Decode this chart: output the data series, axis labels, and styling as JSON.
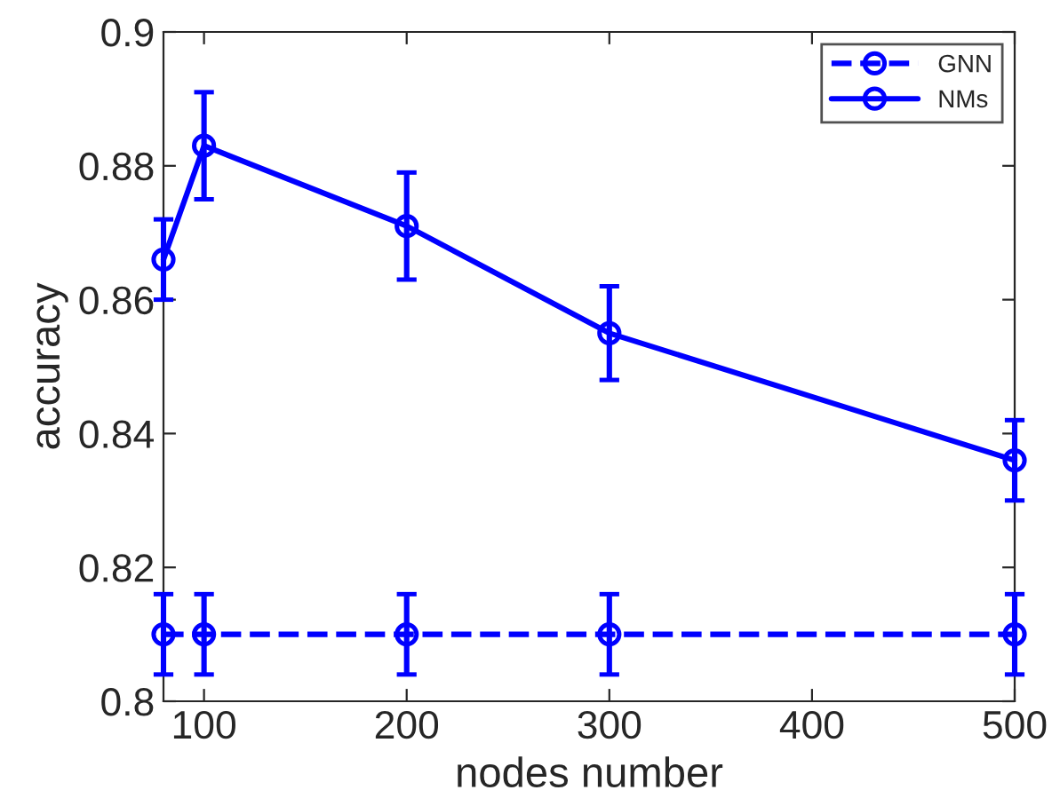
{
  "chart_data": {
    "type": "line",
    "xlabel": "nodes number",
    "ylabel": "accuracy",
    "x": [
      80,
      100,
      200,
      300,
      500
    ],
    "series": [
      {
        "name": "GNN",
        "color": "#0000ff",
        "line_style": "dashed",
        "values": [
          0.81,
          0.81,
          0.81,
          0.81,
          0.81
        ],
        "errors": [
          0.006,
          0.006,
          0.006,
          0.006,
          0.006
        ]
      },
      {
        "name": "NMs",
        "color": "#0000ff",
        "line_style": "solid",
        "values": [
          0.866,
          0.883,
          0.871,
          0.855,
          0.836
        ],
        "errors": [
          0.006,
          0.008,
          0.008,
          0.007,
          0.006
        ]
      }
    ],
    "xlim": [
      80,
      500
    ],
    "xticks": [
      100,
      200,
      300,
      400,
      500
    ],
    "ylim": [
      0.8,
      0.9
    ],
    "yticks": [
      0.8,
      0.82,
      0.84,
      0.86,
      0.88,
      0.9
    ],
    "marker": "circle",
    "grid": false,
    "legend": "top right"
  }
}
